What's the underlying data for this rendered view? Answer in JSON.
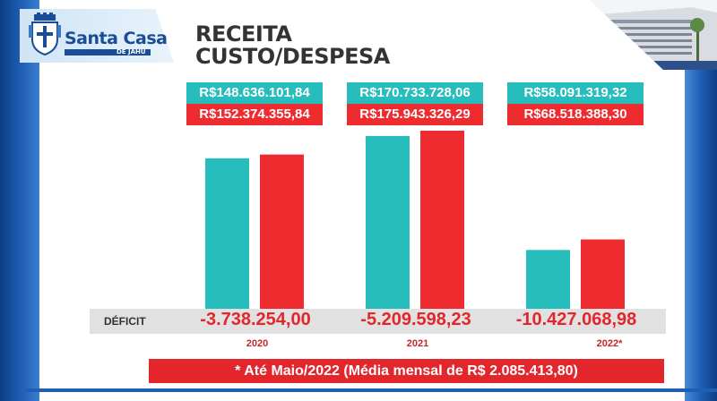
{
  "header": {
    "logo_title": "Santa Casa",
    "logo_subtitle": "DE JAHU",
    "title_line1": "RECEITA",
    "title_line2": "CUSTO/DESPESA"
  },
  "colors": {
    "receita": "#27bdbd",
    "custo": "#ee2b2f",
    "deficit_text": "#e3262c",
    "brand_blue": "#1b4c97"
  },
  "deficit_label": "DÉFICIT",
  "footnote": "* Até Maio/2022 (Média mensal de R$ 2.085.413,80)",
  "chart_data": {
    "type": "bar",
    "categories": [
      "2020",
      "2021",
      "2022*"
    ],
    "series": [
      {
        "name": "RECEITA",
        "values": [
          148636101.84,
          170733728.06,
          58091319.32
        ]
      },
      {
        "name": "CUSTO/DESPESA",
        "values": [
          152374355.84,
          175943326.29,
          68518388.3
        ]
      }
    ],
    "value_labels": {
      "receita": [
        "R$148.636.101,84",
        "R$170.733.728,06",
        "R$58.091.319,32"
      ],
      "custo": [
        "R$152.374.355,84",
        "R$175.943.326,29",
        "R$68.518.388,30"
      ]
    },
    "deficit": [
      "-3.738.254,00",
      "-5.209.598,23",
      "-10.427.068,98"
    ],
    "ylim": [
      0,
      200000000
    ],
    "grid": false,
    "legend": "none"
  }
}
